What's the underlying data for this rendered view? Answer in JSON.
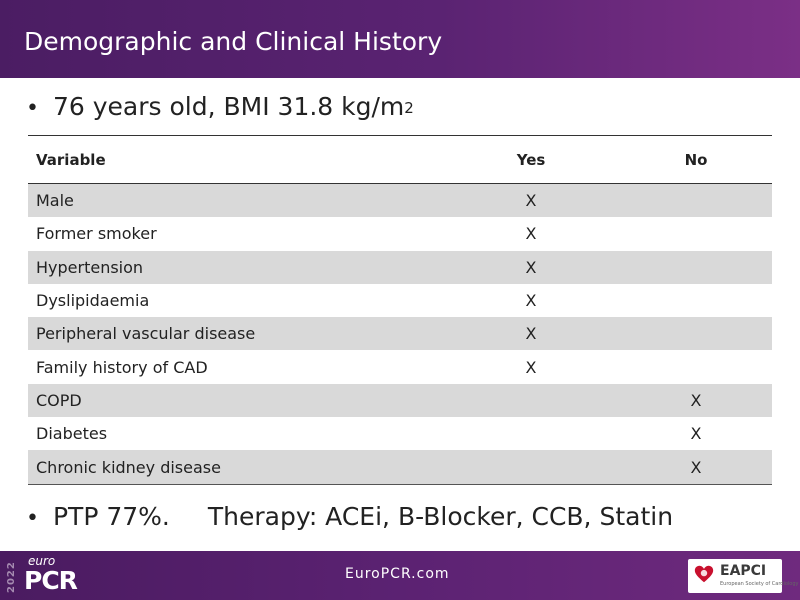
{
  "slide": {
    "title": "Demographic and Clinical History",
    "bullet1": {
      "bullet": "•",
      "text": "76 years old, BMI 31.8 kg/m",
      "superscript": "2"
    },
    "bullet2": {
      "bullet": "•",
      "ptp": "PTP 77%.",
      "therapy": "Therapy: ACEi, B-Blocker, CCB, Statin"
    }
  },
  "table": {
    "headers": {
      "variable": "Variable",
      "yes": "Yes",
      "no": "No"
    },
    "rows": [
      {
        "variable": "Male",
        "yes": "X",
        "no": ""
      },
      {
        "variable": "Former smoker",
        "yes": "X",
        "no": ""
      },
      {
        "variable": "Hypertension",
        "yes": "X",
        "no": ""
      },
      {
        "variable": "Dyslipidaemia",
        "yes": "X",
        "no": ""
      },
      {
        "variable": "Peripheral vascular disease",
        "yes": "X",
        "no": ""
      },
      {
        "variable": "Family history of CAD",
        "yes": "X",
        "no": ""
      },
      {
        "variable": "COPD",
        "yes": "",
        "no": "X"
      },
      {
        "variable": "Diabetes",
        "yes": "",
        "no": "X"
      },
      {
        "variable": "Chronic kidney disease",
        "yes": "",
        "no": "X"
      }
    ]
  },
  "footer": {
    "logo_year": "2022",
    "logo_euro": "euro",
    "logo_pcr": "PCR",
    "url": "EuroPCR.com",
    "eapci_name": "EAPCI",
    "eapci_sub": "European Society of Cardiology",
    "heart_icon": "heart-icon"
  },
  "colors": {
    "header_bg": "#5a2372",
    "footer_bg": "#5b2272",
    "row_shade": "#d9d9d9",
    "heart": "#c8102e"
  }
}
